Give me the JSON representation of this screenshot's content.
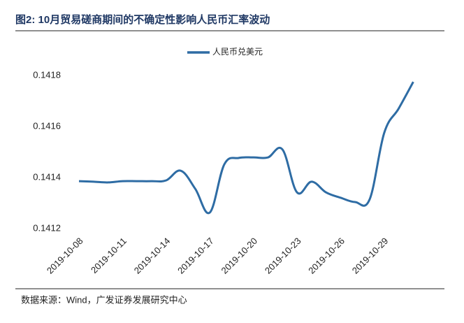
{
  "chart_data": {
    "type": "line",
    "title": "图2:  10月贸易磋商期间的不确定性影响人民币汇率波动",
    "source": "数据来源：Wind，广发证券发展研究中心",
    "categories": [
      "2019-10-08",
      null,
      null,
      "2019-10-11",
      null,
      null,
      "2019-10-14",
      null,
      null,
      "2019-10-17",
      null,
      null,
      "2019-10-20",
      null,
      null,
      "2019-10-23",
      null,
      null,
      "2019-10-26",
      null,
      null,
      "2019-10-29",
      null,
      null
    ],
    "series": [
      {
        "name": "人民币兑美元",
        "color": "#2e6ca4",
        "values": [
          0.141386,
          0.141384,
          0.141381,
          0.141386,
          0.141386,
          0.141386,
          0.141389,
          0.141427,
          0.141356,
          0.141263,
          0.141452,
          0.141477,
          0.141479,
          0.141479,
          0.14151,
          0.141342,
          0.141384,
          0.141342,
          0.141321,
          0.141304,
          0.141315,
          0.141575,
          0.141671,
          0.141775
        ]
      }
    ],
    "ylim": [
      0.1412,
      0.1418
    ],
    "yticks": [
      0.1412,
      0.1414,
      0.1416,
      0.1418
    ],
    "grid": false
  }
}
